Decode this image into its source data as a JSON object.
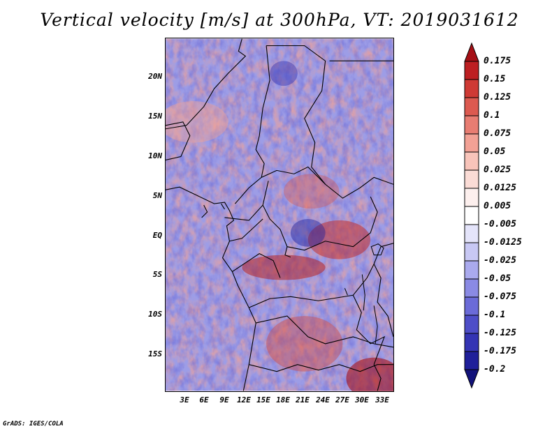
{
  "title": "Vertical velocity [m/s] at 300hPa, VT: 2019031612",
  "credit": "GrADS: IGES/COLA",
  "map": {
    "lat_labels": [
      "20N",
      "15N",
      "10N",
      "5N",
      "EQ",
      "5S",
      "10S",
      "15S"
    ],
    "lon_labels": [
      "3E",
      "6E",
      "9E",
      "12E",
      "15E",
      "18E",
      "21E",
      "24E",
      "27E",
      "30E",
      "33E"
    ]
  },
  "colorbar": {
    "labels": [
      "0.175",
      "0.15",
      "0.125",
      "0.1",
      "0.075",
      "0.05",
      "0.025",
      "0.0125",
      "0.005",
      "-0.005",
      "-0.0125",
      "-0.025",
      "-0.05",
      "-0.075",
      "-0.1",
      "-0.125",
      "-0.175",
      "-0.2"
    ],
    "colors": [
      "#a50f15",
      "#bd1f22",
      "#cf3a35",
      "#dc5a50",
      "#e87d72",
      "#f2a195",
      "#f8c4ba",
      "#fbdcd6",
      "#fdf0ee",
      "#ffffff",
      "#e4e4fa",
      "#c8c8f4",
      "#aaaaee",
      "#8a8ae4",
      "#6b6bd8",
      "#4e4ec8",
      "#3434b4",
      "#1f1f9a",
      "#12127a"
    ]
  }
}
